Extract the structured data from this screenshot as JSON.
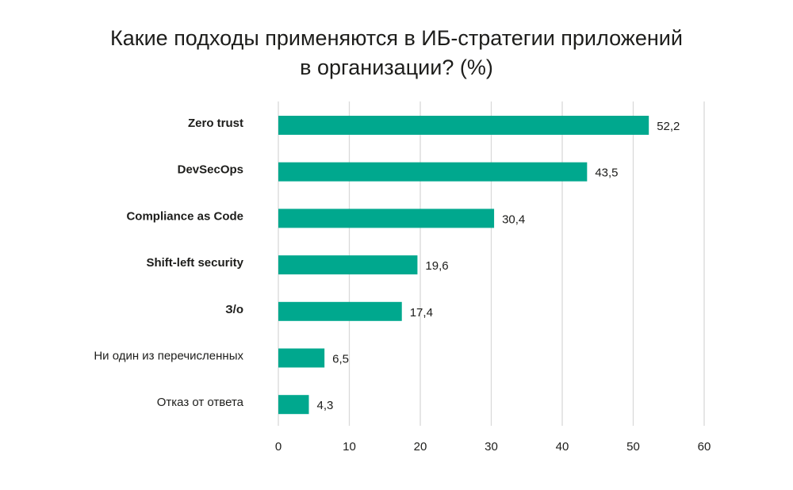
{
  "chart_data": {
    "type": "bar",
    "orientation": "horizontal",
    "title_lines": [
      "Какие подходы применяются в ИБ-стратегии приложений",
      "в организации? (%)"
    ],
    "categories": [
      "Zero trust",
      "DevSecOps",
      "Compliance as Code",
      "Shift-left security",
      "З/о",
      "Ни один из перечисленных",
      "Отказ от ответа"
    ],
    "bold_categories": [
      true,
      true,
      true,
      true,
      true,
      false,
      false
    ],
    "values": [
      52.2,
      43.5,
      30.4,
      19.6,
      17.4,
      6.5,
      4.3
    ],
    "value_labels": [
      "52,2",
      "43,5",
      "30,4",
      "19,6",
      "17,4",
      "6,5",
      "4,3"
    ],
    "xlim": [
      0,
      60
    ],
    "xticks": [
      0,
      10,
      20,
      30,
      40,
      50,
      60
    ],
    "xtick_labels": [
      "0",
      "10",
      "20",
      "30",
      "40",
      "50",
      "60"
    ],
    "grid": "vertical",
    "legend": "none",
    "bar_color": "#00a88e",
    "grid_color": "#d9d9d9"
  }
}
